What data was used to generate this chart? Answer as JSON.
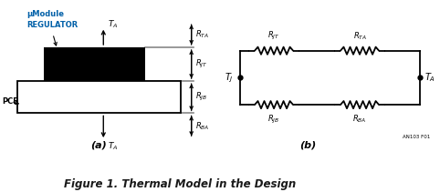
{
  "fig_width": 4.82,
  "fig_height": 2.11,
  "dpi": 100,
  "bg_color": "#ffffff",
  "title": "Figure 1. Thermal Model in the Design",
  "title_fontsize": 8.5,
  "title_color": "#1a1a1a",
  "annotation_id": "AN103 F01",
  "label_color_blue": "#0060a8",
  "umodule_line1": "μModule",
  "umodule_line2": "REGULATOR",
  "pcb_label": "PCB",
  "ta_label": "$T_A$",
  "tj_label": "$T_J$",
  "rta_label": "$R_{TA}$",
  "rjt_label": "$R_{JT}$",
  "rjb_label": "$R_{JB}$",
  "rba_label": "$R_{BA}$"
}
